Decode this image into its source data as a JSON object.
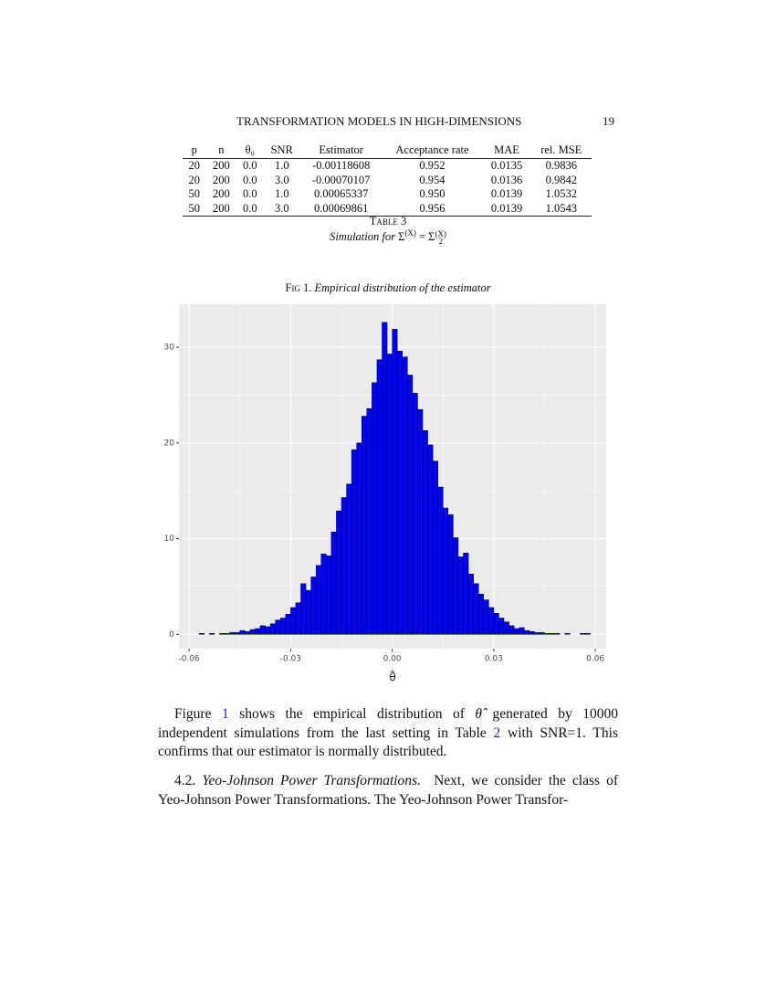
{
  "header": {
    "title": "TRANSFORMATION MODELS IN HIGH-DIMENSIONS",
    "page": "19"
  },
  "table": {
    "columns": [
      "p",
      "n",
      "θ₀",
      "SNR",
      "Estimator",
      "Acceptance rate",
      "MAE",
      "rel. MSE"
    ],
    "rows": [
      [
        "20",
        "200",
        "0.0",
        "1.0",
        "-0.00118608",
        "0.952",
        "0.0135",
        "0.9836"
      ],
      [
        "20",
        "200",
        "0.0",
        "3.0",
        "-0.00070107",
        "0.954",
        "0.0136",
        "0.9842"
      ],
      [
        "50",
        "200",
        "0.0",
        "1.0",
        "0.00065337",
        "0.950",
        "0.0139",
        "1.0532"
      ],
      [
        "50",
        "200",
        "0.0",
        "3.0",
        "0.00069861",
        "0.956",
        "0.0139",
        "1.0543"
      ]
    ],
    "caption": {
      "label": "Table 3",
      "prefix": "Simulation for",
      "lhs": "Σ",
      "lhs_sup": "(X)",
      "rhs": "= Σ",
      "rhs_sub": "2",
      "rhs_sup": "(X)"
    }
  },
  "figure": {
    "label": "Fig 1.",
    "caption": "Empirical distribution of the estimator"
  },
  "chart_data": {
    "type": "histogram",
    "color": "#0000ff",
    "grid": true,
    "xlabel": "θ̂",
    "bins": [
      -0.057,
      -0.0555,
      -0.054,
      -0.0525,
      -0.051,
      -0.0495,
      -0.048,
      -0.0465,
      -0.045,
      -0.0435,
      -0.042,
      -0.0405,
      -0.039,
      -0.0375,
      -0.036,
      -0.0345,
      -0.033,
      -0.0315,
      -0.03,
      -0.0285,
      -0.027,
      -0.0255,
      -0.024,
      -0.0225,
      -0.021,
      -0.0195,
      -0.018,
      -0.0165,
      -0.015,
      -0.0135,
      -0.012,
      -0.0105,
      -0.009,
      -0.0075,
      -0.006,
      -0.0045,
      -0.003,
      -0.0015,
      0,
      0.0015,
      0.003,
      0.0045,
      0.006,
      0.0075,
      0.009,
      0.0105,
      0.012,
      0.0135,
      0.015,
      0.0165,
      0.018,
      0.0195,
      0.021,
      0.0225,
      0.024,
      0.0255,
      0.027,
      0.0285,
      0.03,
      0.0315,
      0.033,
      0.0345,
      0.036,
      0.0375,
      0.039,
      0.0405,
      0.042,
      0.0435,
      0.045,
      0.0465,
      0.048,
      0.0495,
      0.051,
      0.0525,
      0.054,
      0.0555,
      0.057,
      0.0585
    ],
    "values": [
      0.1,
      0.0,
      0.1,
      0.0,
      0.1,
      0.1,
      0.2,
      0.2,
      0.4,
      0.3,
      0.5,
      0.6,
      0.9,
      0.8,
      1.1,
      1.5,
      1.7,
      2.1,
      2.8,
      3.3,
      5.3,
      4.6,
      6.0,
      7.2,
      8.4,
      8.2,
      10.7,
      12.9,
      14.3,
      15.7,
      19.3,
      20.0,
      22.8,
      23.6,
      26.3,
      28.7,
      32.6,
      29.3,
      31.9,
      29.6,
      29.0,
      27.1,
      25.2,
      23.5,
      21.3,
      19.8,
      18.1,
      15.4,
      13.2,
      12.5,
      10.1,
      8.1,
      8.5,
      6.3,
      5.3,
      4.2,
      3.6,
      2.8,
      2.2,
      1.7,
      1.3,
      0.9,
      0.6,
      0.7,
      0.4,
      0.3,
      0.2,
      0.2,
      0.1,
      0.1,
      0.1,
      0.0,
      0.1,
      0.0,
      0.0,
      0.1,
      0.1
    ],
    "xlim": [
      -0.063,
      0.0632
    ],
    "xticks": [
      -0.06,
      -0.03,
      {
        "value": 0,
        "label": "0.00"
      },
      0.03,
      0.06
    ],
    "ylim": [
      -1.5,
      34.5
    ],
    "yticks": [
      0,
      10,
      20,
      30
    ]
  },
  "paragraphs": [
    [
      "Figure",
      "1",
      "shows the empirical distribution of",
      "θ̂",
      "generated by 10000 independent simulations from the last setting in Table",
      "2",
      "with SNR=1. This confirms that our estimator is normally distributed."
    ],
    [
      "4.2.",
      "Yeo-Johnson Power Transformations.",
      "Next, we consider the class of Yeo-Johnson Power Transformations. The Yeo-Johnson Power Transfor-"
    ]
  ]
}
